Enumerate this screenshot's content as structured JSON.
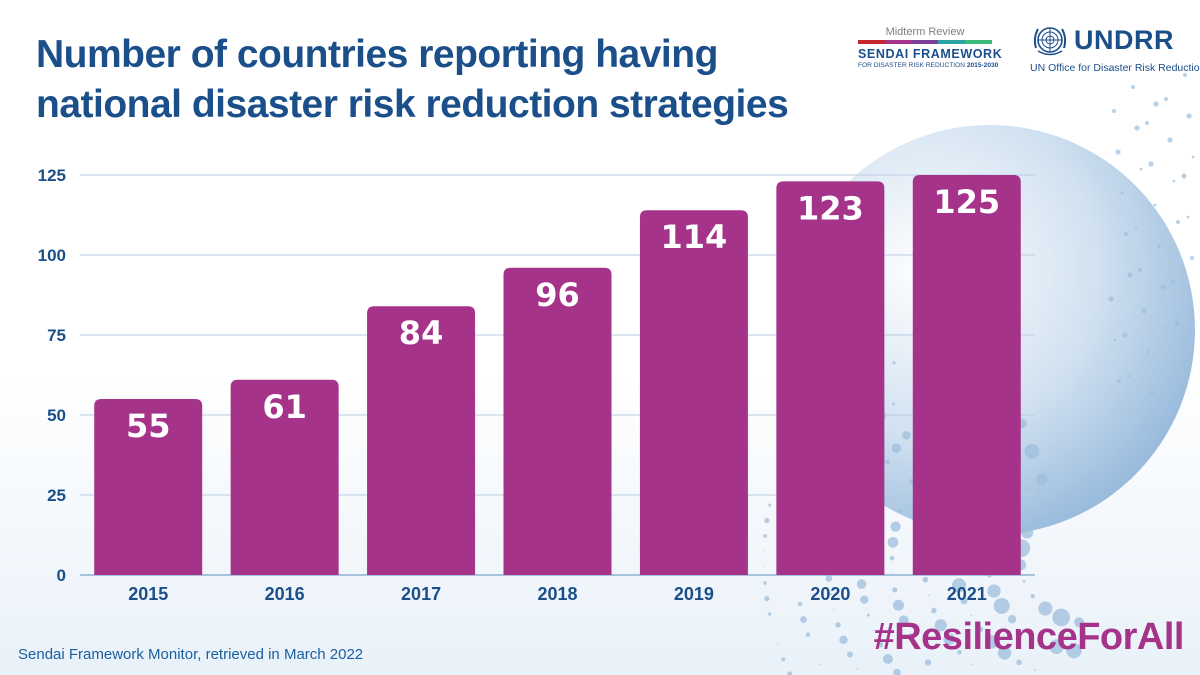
{
  "header": {
    "title_line1": "Number of countries reporting having",
    "title_line2": "national disaster risk reduction strategies"
  },
  "logos": {
    "sendai_review": "Midterm Review",
    "sendai_name": "SENDAI FRAMEWORK",
    "sendai_sub_prefix": "FOR DISASTER RISK REDUCTION ",
    "sendai_sub_years": "2015-2030",
    "undrr_name": "UNDRR",
    "undrr_sub": "UN Office for Disaster Risk Reduction"
  },
  "footer": {
    "source": "Sendai Framework Monitor, retrieved in March 2022",
    "hashtag": "#ResilienceForAll"
  },
  "colors": {
    "bar": "#a5338a",
    "title": "#1b4f8a",
    "axis_text": "#1b4f8a",
    "grid": "#b8cde2",
    "accent_blue": "#7fa9d3",
    "sendai_stripes": [
      "#c1272d",
      "#a5338a",
      "#7b3f98",
      "#2aa4a0",
      "#3cb878"
    ]
  },
  "chart_data": {
    "type": "bar",
    "title": "Number of countries reporting having national disaster risk reduction strategies",
    "categories": [
      "2015",
      "2016",
      "2017",
      "2018",
      "2019",
      "2020",
      "2021"
    ],
    "values": [
      55,
      61,
      84,
      96,
      114,
      123,
      125
    ],
    "value_labels": [
      "55",
      "61",
      "84",
      "96",
      "114",
      "123",
      "125"
    ],
    "yticks": [
      "0",
      "25",
      "50",
      "75",
      "100",
      "125"
    ],
    "ytick_values": [
      0,
      25,
      50,
      75,
      100,
      125
    ],
    "ylim": [
      0,
      125
    ],
    "xlabel": "",
    "ylabel": "",
    "grid": true,
    "legend": "none"
  }
}
